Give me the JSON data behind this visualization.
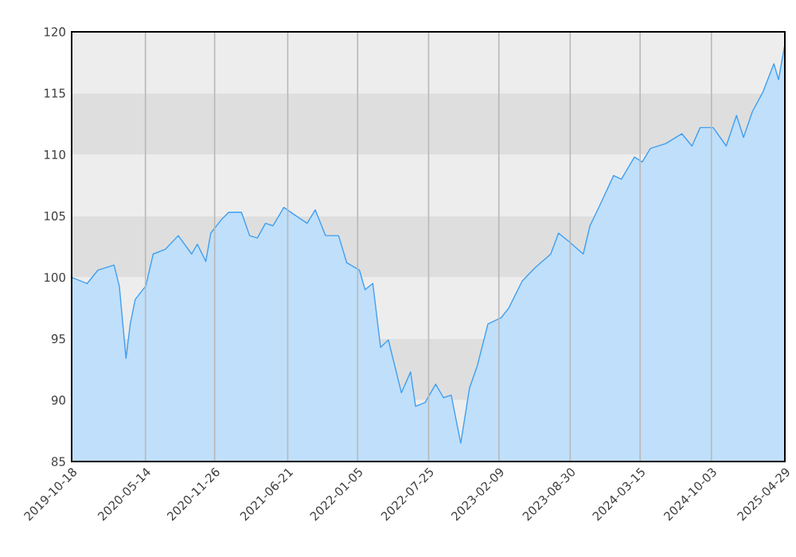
{
  "chart_data": {
    "type": "area",
    "xlim": [
      "2019-10-18",
      "2025-04-29"
    ],
    "xticks": [
      "2019-10-18",
      "2020-05-14",
      "2020-11-26",
      "2021-06-21",
      "2022-01-05",
      "2022-07-25",
      "2023-02-09",
      "2023-08-30",
      "2024-03-15",
      "2024-10-03",
      "2025-04-29"
    ],
    "ylim": [
      85,
      120
    ],
    "yticks": [
      85,
      90,
      95,
      100,
      105,
      110,
      115,
      120
    ],
    "grid": true,
    "series": [
      {
        "color": "#3f9ff0",
        "x": [
          "2019-10-18",
          "2019-12-01",
          "2020-01-01",
          "2020-02-15",
          "2020-03-01",
          "2020-03-20",
          "2020-04-01",
          "2020-04-15",
          "2020-05-15",
          "2020-06-05",
          "2020-07-10",
          "2020-08-15",
          "2020-09-22",
          "2020-10-08",
          "2020-11-01",
          "2020-11-15",
          "2020-12-15",
          "2021-01-05",
          "2021-02-10",
          "2021-03-05",
          "2021-03-27",
          "2021-04-19",
          "2021-05-10",
          "2021-06-10",
          "2021-07-10",
          "2021-08-15",
          "2021-09-07",
          "2021-10-06",
          "2021-11-12",
          "2021-12-05",
          "2022-01-10",
          "2022-01-26",
          "2022-02-17",
          "2022-03-11",
          "2022-04-02",
          "2022-05-09",
          "2022-06-04",
          "2022-06-18",
          "2022-07-15",
          "2022-08-14",
          "2022-09-05",
          "2022-09-27",
          "2022-10-24",
          "2022-11-18",
          "2022-12-10",
          "2023-01-09",
          "2023-02-15",
          "2023-03-09",
          "2023-04-16",
          "2023-05-23",
          "2023-07-06",
          "2023-07-28",
          "2023-08-27",
          "2023-10-06",
          "2023-10-25",
          "2023-11-24",
          "2023-12-31",
          "2024-01-22",
          "2024-02-28",
          "2024-03-21",
          "2024-04-13",
          "2024-05-27",
          "2024-07-11",
          "2024-08-09",
          "2024-09-01",
          "2024-10-08",
          "2024-11-14",
          "2024-12-13",
          "2025-01-02",
          "2025-01-27",
          "2025-02-26",
          "2025-03-29",
          "2025-04-11",
          "2025-04-29"
        ],
        "values": [
          100.0,
          99.5,
          100.6,
          101.0,
          99.3,
          93.4,
          96.2,
          98.2,
          99.3,
          101.9,
          102.3,
          103.4,
          101.9,
          102.7,
          101.3,
          103.6,
          104.7,
          105.3,
          105.3,
          103.4,
          103.2,
          104.4,
          104.2,
          105.7,
          105.1,
          104.4,
          105.5,
          103.4,
          103.4,
          101.2,
          100.6,
          99.0,
          99.5,
          94.3,
          94.9,
          90.6,
          92.3,
          89.5,
          89.8,
          91.3,
          90.2,
          90.4,
          86.5,
          91.0,
          92.8,
          96.2,
          96.7,
          97.5,
          99.7,
          100.8,
          101.9,
          103.6,
          102.9,
          101.9,
          104.2,
          106.0,
          108.3,
          108.0,
          109.8,
          109.4,
          110.5,
          110.9,
          111.7,
          110.7,
          112.2,
          112.2,
          110.7,
          113.2,
          111.4,
          113.5,
          115.1,
          117.4,
          116.1,
          119.0
        ]
      }
    ]
  }
}
